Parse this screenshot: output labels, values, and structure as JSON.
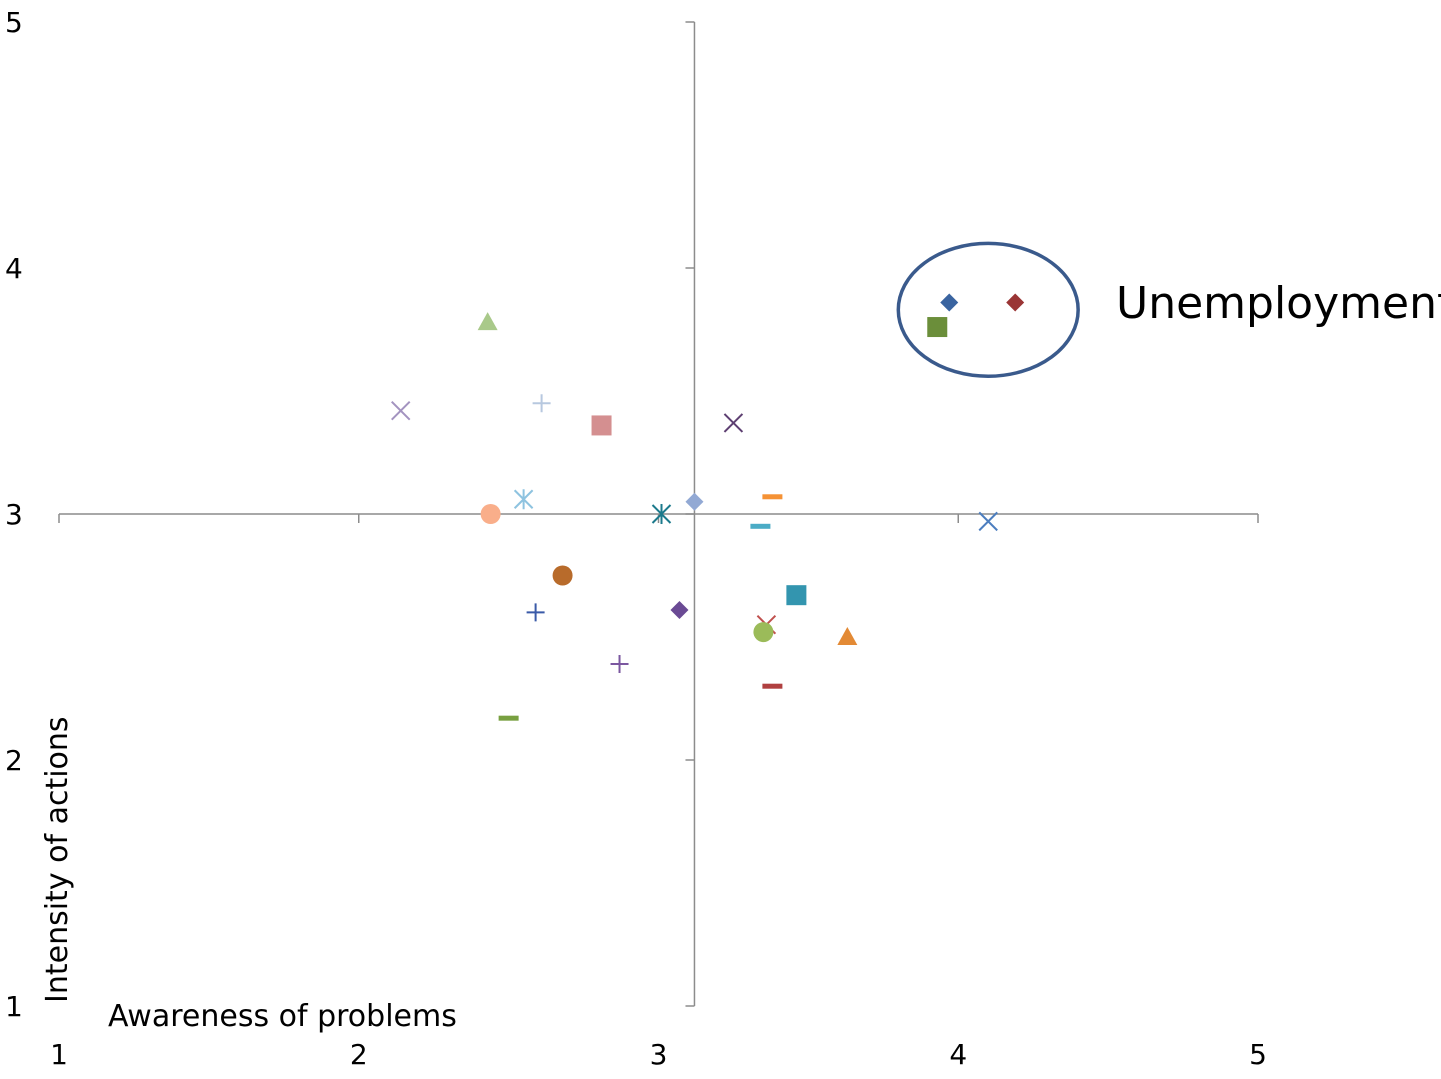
{
  "chart_data": {
    "type": "scatter",
    "title": "",
    "xlabel": "Awareness of problems",
    "ylabel": "Intensity of actions",
    "xlim": [
      1,
      5
    ],
    "ylim": [
      1,
      5
    ],
    "x_ticks": [
      "1",
      "2",
      "3",
      "4",
      "5"
    ],
    "y_ticks": [
      "1",
      "2",
      "3",
      "4",
      "5"
    ],
    "x_axis_crosses_y_at": 3,
    "y_axis_crosses_x_at": 3.12,
    "grid": false,
    "legend": "none",
    "annotation": {
      "text": "Unemployment",
      "ellipse_center": [
        4.1,
        3.83
      ],
      "ellipse_radius": [
        0.3,
        0.27
      ],
      "color": "#3A5A8C"
    },
    "points": [
      {
        "x": 3.97,
        "y": 3.86,
        "marker": "diamond",
        "color": "#3A64A0"
      },
      {
        "x": 4.19,
        "y": 3.86,
        "marker": "diamond",
        "color": "#9A3535"
      },
      {
        "x": 3.93,
        "y": 3.76,
        "marker": "square",
        "color": "#6B8E3A"
      },
      {
        "x": 2.43,
        "y": 3.78,
        "marker": "triangle",
        "color": "#A9C98A"
      },
      {
        "x": 2.14,
        "y": 3.42,
        "marker": "x",
        "color": "#A393C0"
      },
      {
        "x": 2.61,
        "y": 3.45,
        "marker": "plus",
        "color": "#B7C8DF"
      },
      {
        "x": 2.81,
        "y": 3.36,
        "marker": "square",
        "color": "#D48F90"
      },
      {
        "x": 3.25,
        "y": 3.37,
        "marker": "x",
        "color": "#5E4072"
      },
      {
        "x": 2.55,
        "y": 3.06,
        "marker": "star",
        "color": "#8EC3E0"
      },
      {
        "x": 2.44,
        "y": 3.0,
        "marker": "circle",
        "color": "#F9AE8A"
      },
      {
        "x": 3.01,
        "y": 3.0,
        "marker": "star",
        "color": "#1C7A8C"
      },
      {
        "x": 3.12,
        "y": 3.05,
        "marker": "diamond",
        "color": "#92A9D4"
      },
      {
        "x": 3.38,
        "y": 3.07,
        "marker": "dash",
        "color": "#F59235"
      },
      {
        "x": 3.34,
        "y": 2.95,
        "marker": "dash",
        "color": "#4BACC6"
      },
      {
        "x": 4.1,
        "y": 2.97,
        "marker": "x",
        "color": "#4C7EBF"
      },
      {
        "x": 2.68,
        "y": 2.75,
        "marker": "circle",
        "color": "#B86B2B"
      },
      {
        "x": 3.46,
        "y": 2.67,
        "marker": "square",
        "color": "#3395AF"
      },
      {
        "x": 2.59,
        "y": 2.6,
        "marker": "plus",
        "color": "#3A5AA8"
      },
      {
        "x": 3.07,
        "y": 2.61,
        "marker": "diamond",
        "color": "#6A4A94"
      },
      {
        "x": 3.36,
        "y": 2.55,
        "marker": "x",
        "color": "#C0504D"
      },
      {
        "x": 3.35,
        "y": 2.52,
        "marker": "circle",
        "color": "#9BBB59"
      },
      {
        "x": 3.63,
        "y": 2.5,
        "marker": "triangle",
        "color": "#E38A35"
      },
      {
        "x": 2.87,
        "y": 2.39,
        "marker": "plus",
        "color": "#7B57A0"
      },
      {
        "x": 3.38,
        "y": 2.3,
        "marker": "dash",
        "color": "#B04040"
      },
      {
        "x": 2.5,
        "y": 2.17,
        "marker": "dash",
        "color": "#78A040"
      }
    ]
  }
}
